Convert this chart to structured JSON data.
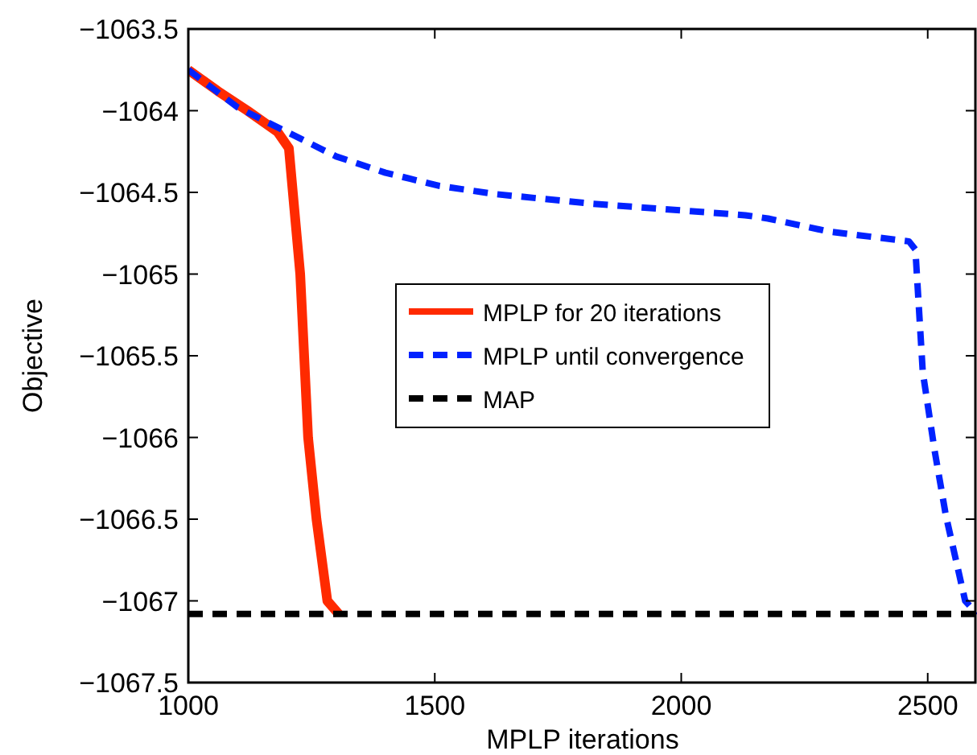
{
  "chart_data": {
    "type": "line",
    "xlabel": "MPLP iterations",
    "ylabel": "Objective",
    "xlim": [
      1000,
      2600
    ],
    "xticks": [
      1000,
      1500,
      2000,
      2500
    ],
    "ylim": [
      -1067.5,
      -1063.5
    ],
    "yticks": [
      -1067.5,
      -1067,
      -1066.5,
      -1066,
      -1065.5,
      -1065,
      -1064.5,
      -1064,
      -1063.5
    ],
    "legend": "center",
    "grid": false,
    "marker": "none",
    "series": [
      {
        "name": "MPLP for 20 iterations",
        "color": "#ff2a00",
        "line_style": "solid",
        "x": [
          1000,
          1060,
          1120,
          1181,
          1204,
          1215,
          1227,
          1243,
          1260,
          1282,
          1305
        ],
        "values": [
          -1063.75,
          -1063.88,
          -1064.0,
          -1064.13,
          -1064.23,
          -1064.6,
          -1065.0,
          -1066.0,
          -1066.5,
          -1067.0,
          -1067.08
        ]
      },
      {
        "name": "MPLP until convergence",
        "color": "#0022ff",
        "line_style": "dashed",
        "x": [
          1000,
          1100,
          1200,
          1300,
          1400,
          1509,
          1621,
          1821,
          2130,
          2176,
          2300,
          2462,
          2475,
          2490,
          2514,
          2537,
          2576,
          2600
        ],
        "values": [
          -1063.75,
          -1063.98,
          -1064.13,
          -1064.28,
          -1064.38,
          -1064.46,
          -1064.51,
          -1064.57,
          -1064.64,
          -1064.66,
          -1064.74,
          -1064.8,
          -1064.85,
          -1065.6,
          -1066.08,
          -1066.48,
          -1067.0,
          -1067.08
        ]
      },
      {
        "name": "MAP",
        "color": "#000000",
        "line_style": "dashed",
        "x": [
          1000,
          2600
        ],
        "values": [
          -1067.08,
          -1067.08
        ]
      }
    ]
  }
}
